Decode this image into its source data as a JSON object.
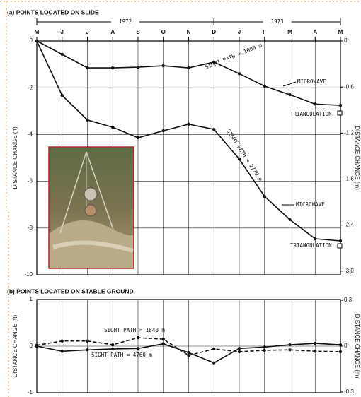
{
  "chart_data": [
    {
      "type": "line",
      "title": "(a) POINTS LOCATED ON SLIDE",
      "categories": [
        "M",
        "J",
        "J",
        "A",
        "S",
        "O",
        "N",
        "D",
        "J",
        "F",
        "M",
        "A",
        "M"
      ],
      "x_groups": [
        "1972",
        "1973"
      ],
      "y_label": "DISTANCE CHANGE (ft)",
      "y2_label": "DISTANCE CHANGE (m)",
      "ylim": [
        -10,
        0
      ],
      "yticks": [
        0,
        -2,
        -4,
        -6,
        -8,
        -10
      ],
      "y2lim": [
        -3.048,
        0
      ],
      "y2ticks": [
        0,
        -0.6,
        -1.2,
        -1.8,
        -2.4,
        {
          "value": -3,
          "label": "-3.0"
        }
      ],
      "grid": true,
      "series": [
        {
          "name": "SIGHT PATH = 1600 m",
          "color": "#111111",
          "style": "solid",
          "values": [
            0,
            -0.57,
            -1.15,
            -1.15,
            -1.12,
            -1.06,
            -1.15,
            -0.9,
            -1.4,
            -1.93,
            -2.3,
            -2.7,
            -2.75
          ]
        },
        {
          "name": "SIGHT PATH = 2770 m",
          "color": "#111111",
          "style": "solid",
          "values": [
            0,
            -2.33,
            -3.38,
            -3.69,
            -4.14,
            -3.84,
            -3.56,
            -3.78,
            -5.05,
            -6.65,
            -7.64,
            -8.46,
            -8.55
          ]
        }
      ],
      "annotations": [
        "MICROWAVE",
        "TRIANGULATION",
        "MICROWAVE",
        "TRIANGULATION"
      ]
    },
    {
      "type": "line",
      "title": "(b) POINTS LOCATED ON STABLE GROUND",
      "categories": [
        null,
        null,
        null,
        null,
        null,
        null,
        null,
        null,
        null,
        null,
        null,
        null,
        null
      ],
      "y_label": "DISTANCE CHANGE (ft)",
      "y2_label": "DISTANCE CHANGE (m)",
      "ylim": [
        -1,
        1
      ],
      "yticks": [
        1,
        0,
        -1
      ],
      "y2lim": [
        -0.3048,
        0.3048
      ],
      "y2ticks": [
        0.3,
        0,
        -0.3
      ],
      "grid": true,
      "series": [
        {
          "name": "SIGHT PATH = 1840 m",
          "color": "#111111",
          "style": "dashed",
          "values": [
            0.02,
            0.11,
            0.11,
            0.03,
            0.18,
            0.15,
            -0.2,
            -0.06,
            -0.12,
            -0.09,
            -0.08,
            -0.11,
            -0.12
          ]
        },
        {
          "name": "SIGHT PATH = 4760 m",
          "color": "#111111",
          "style": "solid",
          "values": [
            0,
            -0.11,
            -0.08,
            -0.06,
            -0.05,
            0.05,
            -0.14,
            -0.36,
            -0.05,
            -0.02,
            0.03,
            0.06,
            0.03
          ]
        }
      ],
      "annotations": []
    }
  ]
}
